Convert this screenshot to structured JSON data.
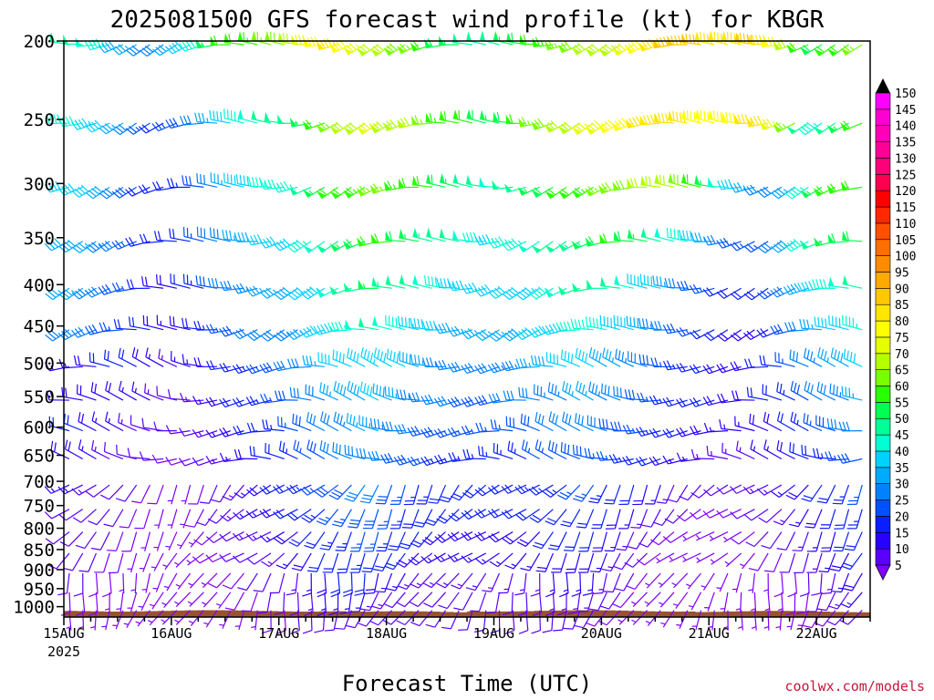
{
  "chart_data": {
    "type": "wind-barb-profile",
    "title": "2025081500 GFS forecast wind profile (kt) for KBGR",
    "xlabel": "Forecast Time (UTC)",
    "ylabel": "",
    "credit": "coolwx.com/models",
    "y_axis": {
      "ticks": [
        200,
        250,
        300,
        350,
        400,
        450,
        500,
        550,
        600,
        650,
        700,
        750,
        800,
        850,
        900,
        950,
        1000
      ],
      "scale": "log-pressure",
      "range": [
        200,
        1030
      ]
    },
    "x_axis": {
      "ticks": [
        "15AUG",
        "16AUG",
        "17AUG",
        "18AUG",
        "19AUG",
        "20AUG",
        "21AUG",
        "22AUG"
      ],
      "first_tick_year": "2025",
      "range_hours": [
        0,
        180
      ]
    },
    "pressure_levels": [
      200,
      250,
      300,
      350,
      400,
      450,
      500,
      550,
      600,
      650,
      700,
      750,
      800,
      850,
      900,
      950,
      1000
    ],
    "time_step_hours": 3,
    "ground_color": "#9a5230",
    "colorbar": {
      "levels": [
        5,
        10,
        15,
        20,
        25,
        30,
        35,
        40,
        45,
        50,
        55,
        60,
        65,
        70,
        75,
        80,
        85,
        90,
        95,
        100,
        105,
        110,
        115,
        120,
        125,
        130,
        135,
        140,
        145,
        150
      ],
      "colors": [
        "#8000ff",
        "#5a00ff",
        "#2800ff",
        "#0a1eff",
        "#0050ff",
        "#0082ff",
        "#00aaff",
        "#00d2ff",
        "#00ffd2",
        "#00ff96",
        "#00ff50",
        "#28ff00",
        "#78ff00",
        "#b4ff00",
        "#e6ff00",
        "#ffff00",
        "#ffe600",
        "#ffc800",
        "#ffaa00",
        "#ff8c00",
        "#ff6e00",
        "#ff5000",
        "#ff2800",
        "#ff0000",
        "#ff0050",
        "#ff0078",
        "#ff0096",
        "#ff00b4",
        "#ff00d2",
        "#ff00ff"
      ]
    },
    "speed_profile_kt": {
      "200": [
        50,
        50,
        48,
        45,
        38,
        35,
        32,
        30,
        35,
        40,
        45,
        55,
        60,
        62,
        64,
        66,
        68,
        72,
        78,
        82,
        85,
        80,
        75,
        72,
        70,
        68,
        65,
        60,
        58,
        55,
        52,
        50,
        52,
        55,
        58,
        62,
        64,
        66,
        68,
        70,
        72,
        74,
        76,
        80,
        85,
        90,
        92,
        90,
        88,
        85,
        88,
        90,
        88,
        80,
        70,
        62,
        58,
        60,
        62,
        65
      ],
      "250": [
        45,
        45,
        44,
        42,
        35,
        30,
        25,
        22,
        25,
        28,
        32,
        35,
        40,
        45,
        48,
        50,
        50,
        52,
        55,
        60,
        65,
        70,
        72,
        75,
        74,
        72,
        70,
        66,
        64,
        62,
        60,
        58,
        56,
        58,
        62,
        65,
        68,
        70,
        72,
        75,
        78,
        80,
        82,
        85,
        88,
        88,
        85,
        84,
        82,
        80,
        82,
        85,
        86,
        76,
        65,
        52,
        45,
        50,
        55,
        60
      ],
      "300": [
        40,
        40,
        40,
        38,
        32,
        28,
        22,
        20,
        22,
        24,
        28,
        32,
        36,
        40,
        42,
        45,
        45,
        46,
        50,
        55,
        60,
        62,
        64,
        65,
        66,
        64,
        62,
        60,
        58,
        55,
        52,
        50,
        48,
        50,
        52,
        55,
        58,
        60,
        62,
        64,
        66,
        68,
        68,
        70,
        72,
        70,
        68,
        62,
        55,
        48,
        40,
        35,
        30,
        30,
        35,
        45,
        55,
        60,
        62,
        62
      ],
      "350": [
        38,
        38,
        36,
        34,
        30,
        26,
        22,
        20,
        20,
        22,
        26,
        30,
        32,
        36,
        38,
        40,
        40,
        42,
        45,
        48,
        52,
        55,
        58,
        60,
        60,
        58,
        56,
        54,
        52,
        50,
        48,
        46,
        44,
        45,
        46,
        48,
        50,
        52,
        54,
        56,
        58,
        60,
        58,
        56,
        52,
        48,
        45,
        40,
        35,
        30,
        28,
        26,
        25,
        30,
        38,
        45,
        50,
        55,
        58,
        58
      ],
      "400": [
        35,
        35,
        34,
        32,
        28,
        25,
        20,
        18,
        18,
        20,
        24,
        28,
        30,
        32,
        34,
        36,
        36,
        38,
        40,
        44,
        48,
        50,
        52,
        55,
        54,
        52,
        50,
        48,
        46,
        44,
        42,
        40,
        40,
        40,
        42,
        44,
        46,
        48,
        50,
        52,
        52,
        50,
        48,
        44,
        40,
        36,
        32,
        28,
        25,
        22,
        20,
        20,
        20,
        25,
        32,
        38,
        42,
        46,
        48,
        50
      ],
      "450": [
        32,
        32,
        30,
        28,
        25,
        22,
        20,
        18,
        16,
        18,
        20,
        24,
        26,
        28,
        30,
        32,
        32,
        34,
        36,
        40,
        44,
        46,
        48,
        50,
        48,
        46,
        44,
        42,
        40,
        38,
        36,
        36,
        36,
        36,
        38,
        40,
        42,
        44,
        45,
        46,
        45,
        44,
        42,
        38,
        34,
        30,
        28,
        25,
        22,
        20,
        18,
        18,
        18,
        22,
        28,
        32,
        36,
        40,
        42,
        45
      ],
      "500": [
        15,
        16,
        18,
        20,
        22,
        20,
        18,
        16,
        14,
        15,
        16,
        18,
        20,
        22,
        24,
        26,
        28,
        30,
        32,
        36,
        40,
        42,
        42,
        44,
        42,
        40,
        38,
        36,
        34,
        32,
        32,
        32,
        32,
        33,
        34,
        36,
        38,
        40,
        40,
        40,
        38,
        36,
        34,
        30,
        28,
        26,
        24,
        22,
        20,
        18,
        18,
        18,
        20,
        22,
        26,
        30,
        34,
        36,
        38,
        40
      ],
      "550": [
        18,
        18,
        18,
        18,
        18,
        16,
        15,
        14,
        12,
        12,
        14,
        16,
        18,
        20,
        22,
        24,
        26,
        28,
        30,
        32,
        36,
        38,
        38,
        40,
        38,
        36,
        34,
        32,
        30,
        30,
        28,
        28,
        28,
        30,
        30,
        32,
        34,
        34,
        36,
        36,
        34,
        32,
        30,
        28,
        26,
        24,
        22,
        20,
        20,
        18,
        18,
        18,
        20,
        20,
        24,
        28,
        30,
        32,
        34,
        36
      ],
      "600": [
        20,
        20,
        18,
        16,
        15,
        14,
        12,
        12,
        10,
        10,
        12,
        14,
        16,
        18,
        20,
        22,
        24,
        26,
        28,
        30,
        32,
        34,
        35,
        36,
        34,
        32,
        30,
        28,
        28,
        26,
        26,
        26,
        26,
        26,
        28,
        28,
        30,
        30,
        32,
        32,
        30,
        28,
        28,
        26,
        24,
        22,
        20,
        18,
        18,
        16,
        16,
        16,
        18,
        18,
        22,
        24,
        26,
        28,
        30,
        32
      ],
      "650": [
        18,
        18,
        16,
        14,
        12,
        12,
        10,
        10,
        8,
        8,
        10,
        12,
        14,
        16,
        18,
        20,
        22,
        24,
        26,
        28,
        30,
        30,
        32,
        32,
        30,
        28,
        28,
        26,
        24,
        24,
        24,
        24,
        24,
        24,
        24,
        26,
        26,
        28,
        28,
        28,
        26,
        26,
        24,
        22,
        20,
        18,
        16,
        16,
        14,
        14,
        14,
        14,
        16,
        16,
        18,
        20,
        22,
        24,
        26,
        28
      ],
      "700": [
        15,
        15,
        14,
        12,
        10,
        10,
        8,
        8,
        7,
        7,
        8,
        10,
        12,
        14,
        16,
        18,
        20,
        22,
        24,
        26,
        28,
        28,
        30,
        30,
        28,
        26,
        24,
        24,
        22,
        22,
        22,
        22,
        22,
        22,
        22,
        24,
        24,
        24,
        26,
        26,
        24,
        22,
        20,
        18,
        16,
        14,
        12,
        12,
        10,
        10,
        10,
        12,
        14,
        14,
        16,
        18,
        20,
        22,
        24,
        26
      ],
      "750": [
        12,
        12,
        12,
        10,
        10,
        8,
        8,
        7,
        6,
        6,
        8,
        10,
        12,
        14,
        16,
        16,
        18,
        20,
        22,
        24,
        26,
        26,
        28,
        28,
        26,
        24,
        22,
        22,
        20,
        20,
        20,
        20,
        20,
        20,
        20,
        22,
        22,
        22,
        22,
        22,
        20,
        18,
        16,
        14,
        12,
        10,
        10,
        8,
        8,
        8,
        8,
        10,
        12,
        12,
        14,
        16,
        18,
        20,
        22,
        24
      ],
      "800": [
        10,
        10,
        10,
        10,
        8,
        8,
        7,
        6,
        6,
        6,
        7,
        8,
        10,
        12,
        14,
        14,
        16,
        18,
        20,
        22,
        24,
        24,
        26,
        26,
        24,
        22,
        20,
        20,
        18,
        18,
        18,
        18,
        18,
        18,
        18,
        18,
        20,
        20,
        20,
        20,
        18,
        16,
        14,
        12,
        10,
        8,
        8,
        6,
        6,
        6,
        6,
        8,
        10,
        10,
        12,
        14,
        16,
        18,
        20,
        22
      ],
      "850": [
        10,
        10,
        10,
        8,
        8,
        7,
        6,
        6,
        5,
        6,
        6,
        8,
        8,
        10,
        12,
        12,
        14,
        16,
        18,
        20,
        22,
        22,
        24,
        22,
        20,
        20,
        18,
        18,
        16,
        16,
        16,
        16,
        16,
        16,
        16,
        16,
        18,
        18,
        18,
        18,
        16,
        14,
        12,
        10,
        8,
        7,
        6,
        6,
        5,
        5,
        6,
        6,
        8,
        8,
        10,
        12,
        14,
        16,
        18,
        20
      ],
      "900": [
        10,
        10,
        8,
        8,
        7,
        6,
        6,
        5,
        5,
        5,
        6,
        6,
        8,
        8,
        10,
        10,
        12,
        14,
        16,
        18,
        20,
        20,
        20,
        18,
        16,
        16,
        14,
        14,
        14,
        14,
        14,
        14,
        14,
        14,
        14,
        14,
        16,
        16,
        16,
        16,
        14,
        12,
        10,
        8,
        7,
        6,
        5,
        5,
        5,
        5,
        5,
        6,
        6,
        8,
        8,
        10,
        12,
        14,
        16,
        18
      ],
      "950": [
        8,
        8,
        8,
        7,
        6,
        6,
        5,
        5,
        5,
        5,
        5,
        6,
        6,
        8,
        8,
        10,
        10,
        12,
        14,
        16,
        16,
        16,
        16,
        14,
        14,
        12,
        12,
        12,
        12,
        12,
        12,
        12,
        12,
        12,
        12,
        12,
        14,
        14,
        14,
        14,
        12,
        10,
        8,
        7,
        6,
        5,
        5,
        5,
        5,
        5,
        5,
        5,
        6,
        6,
        8,
        8,
        10,
        12,
        14,
        16
      ],
      "1000": [
        6,
        6,
        6,
        5,
        5,
        5,
        5,
        5,
        5,
        5,
        5,
        5,
        5,
        6,
        6,
        8,
        8,
        10,
        10,
        12,
        12,
        12,
        12,
        10,
        10,
        10,
        10,
        10,
        10,
        10,
        10,
        10,
        10,
        10,
        10,
        10,
        10,
        10,
        10,
        10,
        8,
        8,
        6,
        6,
        5,
        5,
        5,
        5,
        5,
        5,
        5,
        5,
        5,
        5,
        6,
        6,
        8,
        8,
        10,
        12
      ]
    },
    "direction_profile_deg": {
      "upper": 260,
      "mid": 275,
      "low": 220,
      "surface": 200
    }
  }
}
